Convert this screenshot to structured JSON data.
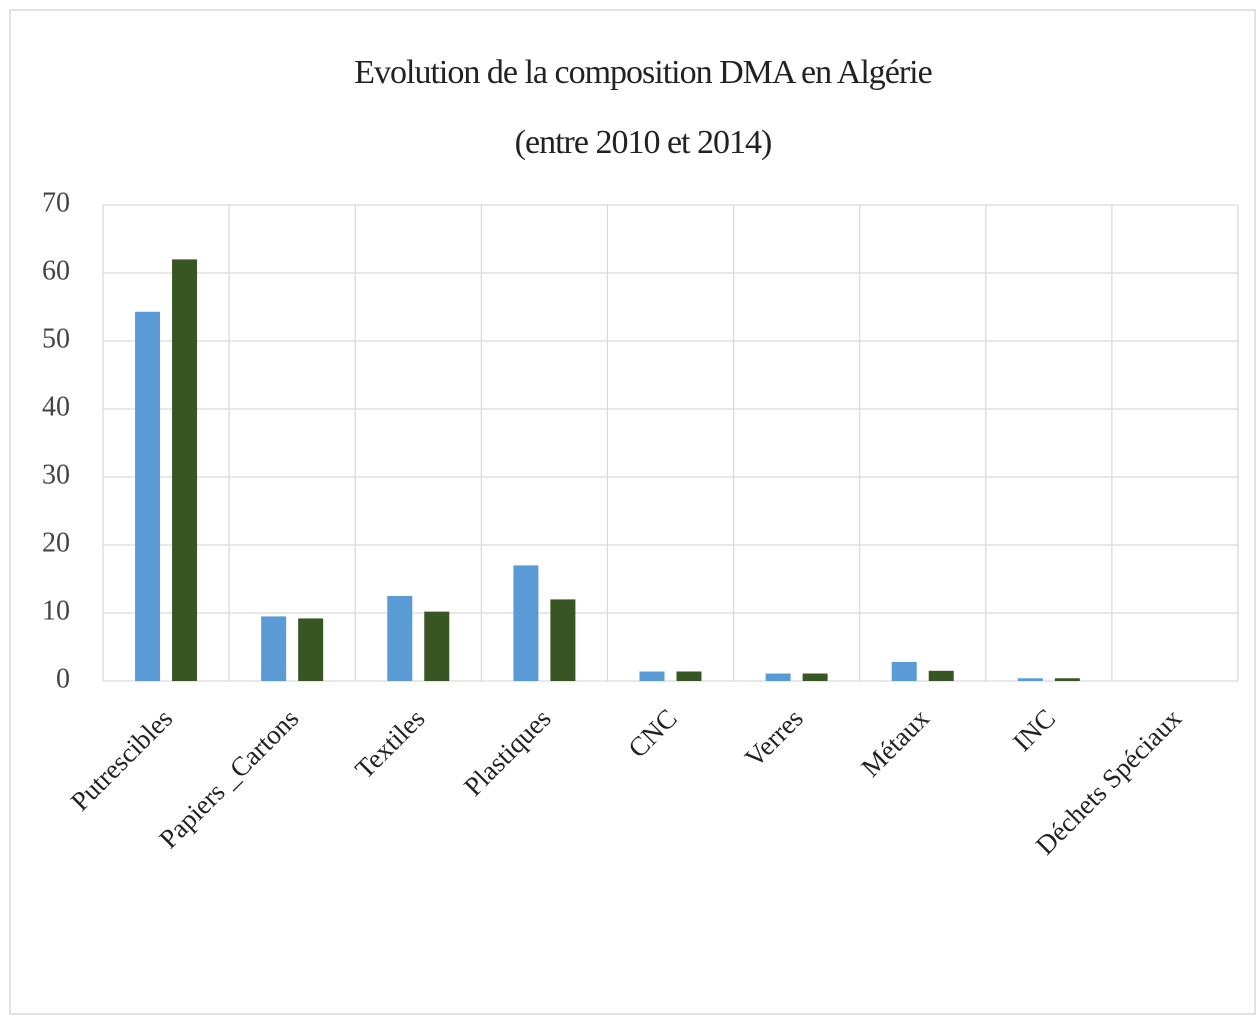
{
  "chart_data": {
    "type": "bar",
    "title": "Evolution de la composition DMA en Algérie",
    "subtitle": "(entre 2010 et 2014)",
    "categories": [
      "Putrescibles",
      "Papiers _Cartons",
      "Textiles",
      "Plastiques",
      "CNC",
      "Verres",
      "Métaux",
      "INC",
      "Déchets Spéciaux"
    ],
    "series": [
      {
        "color": "#5b9bd5",
        "values": [
          54.3,
          9.5,
          12.5,
          17,
          1.4,
          1.1,
          2.8,
          0.4,
          0
        ]
      },
      {
        "color": "#375623",
        "values": [
          62,
          9.2,
          10.2,
          12,
          1.4,
          1.1,
          1.5,
          0.4,
          0
        ]
      }
    ],
    "ylim": [
      0,
      70
    ],
    "yticks": [
      0,
      10,
      20,
      30,
      40,
      50,
      60,
      70
    ],
    "grid": true
  }
}
